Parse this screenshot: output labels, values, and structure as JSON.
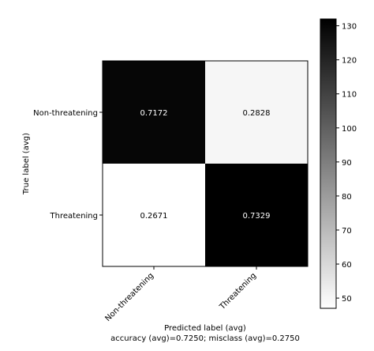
{
  "chart_data": {
    "type": "heatmap",
    "title": "",
    "xlabel": "Predicted label (avg)",
    "ylabel": "True label (avg)",
    "subtitle": "accuracy (avg)=0.7250; misclass (avg)=0.2750",
    "x_categories": [
      "Non-threatening",
      "Threatening"
    ],
    "y_categories": [
      "Non-threatening",
      "Threatening"
    ],
    "cells": [
      {
        "row": 0,
        "col": 0,
        "label": "0.7172",
        "value": 130
      },
      {
        "row": 0,
        "col": 1,
        "label": "0.2828",
        "value": 50
      },
      {
        "row": 1,
        "col": 0,
        "label": "0.2671",
        "value": 47
      },
      {
        "row": 1,
        "col": 1,
        "label": "0.7329",
        "value": 132
      }
    ],
    "colorbar": {
      "min": 47,
      "max": 132,
      "ticks": [
        50,
        60,
        70,
        80,
        90,
        100,
        110,
        120,
        130
      ],
      "colormap": "Greys",
      "low_color": "#ffffff",
      "high_color": "#000000"
    }
  }
}
